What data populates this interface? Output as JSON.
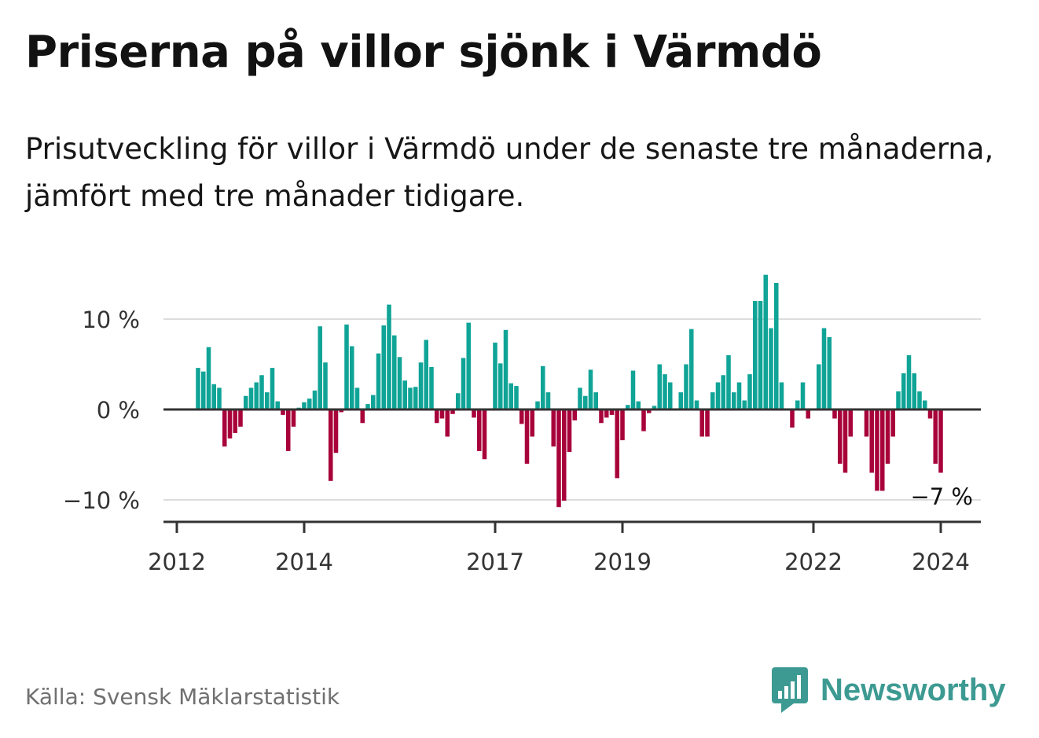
{
  "title": "Priserna på villor sjönk i Värmdö",
  "subtitle": "Prisutveckling för villor i Värmdö under de senaste tre månaderna, jämfört med tre månader tidigare.",
  "source": "Källa: Svensk Mäklarstatistik",
  "brand": {
    "name": "Newsworthy",
    "icon": "newsworthy-logo-icon",
    "color": "#3d9a92"
  },
  "colors": {
    "positive": "#10a497",
    "negative": "#a8023a",
    "grid": "#dddddd",
    "axis": "#333333"
  },
  "chart_data": {
    "type": "bar",
    "ylabel": "",
    "xlabel": "",
    "ylim": [
      -12.5,
      12.5
    ],
    "y_ticks": [
      {
        "value": 10,
        "label": "10 %"
      },
      {
        "value": 0,
        "label": "0 %"
      },
      {
        "value": -10,
        "label": "−10 %"
      }
    ],
    "x_ticks": [
      {
        "value": 2012,
        "label": "2012"
      },
      {
        "value": 2014,
        "label": "2014"
      },
      {
        "value": 2017,
        "label": "2017"
      },
      {
        "value": 2019,
        "label": "2019"
      },
      {
        "value": 2022,
        "label": "2022"
      },
      {
        "value": 2024,
        "label": "2024"
      }
    ],
    "x_start": {
      "year": 2012,
      "month": 1
    },
    "x_end": {
      "year": 2024,
      "month": 6
    },
    "series_start": {
      "year": 2012,
      "month": 5
    },
    "last_value_label": "−7 %",
    "values": [
      4.6,
      4.2,
      6.9,
      2.8,
      2.4,
      -4.1,
      -3.2,
      -2.6,
      -1.9,
      1.5,
      2.4,
      3.0,
      3.8,
      1.9,
      4.6,
      0.9,
      -0.6,
      -4.6,
      -1.9,
      0.2,
      0.8,
      1.2,
      2.1,
      9.2,
      5.2,
      -7.9,
      -4.8,
      -0.3,
      9.4,
      7.0,
      2.4,
      -1.5,
      0.6,
      1.6,
      6.2,
      9.3,
      11.6,
      8.2,
      5.8,
      3.2,
      2.4,
      2.5,
      5.2,
      7.7,
      4.7,
      -1.5,
      -1.0,
      -3.0,
      -0.5,
      1.8,
      5.7,
      9.6,
      -0.9,
      -4.6,
      -5.5,
      0.1,
      7.4,
      5.1,
      8.8,
      2.9,
      2.6,
      -1.6,
      -6.0,
      -3.0,
      0.9,
      4.8,
      1.9,
      -4.1,
      -10.8,
      -10.1,
      -4.7,
      -1.2,
      2.4,
      1.5,
      4.4,
      1.9,
      -1.5,
      -0.9,
      -0.6,
      -7.6,
      -3.4,
      0.5,
      4.3,
      0.9,
      -2.4,
      -0.4,
      0.4,
      5.0,
      3.9,
      3.0,
      -0.1,
      1.9,
      5.0,
      8.9,
      1.0,
      -3.0,
      -3.0,
      1.9,
      3.0,
      3.8,
      6.0,
      1.9,
      3.0,
      1.0,
      3.9,
      12.0,
      12.0,
      14.9,
      9.0,
      14.0,
      3.0,
      0.0,
      -2.0,
      1.0,
      3.0,
      -1.0,
      0.0,
      5.0,
      9.0,
      8.0,
      -1.0,
      -6.0,
      -7.0,
      -3.0,
      0.0,
      0.0,
      -3.0,
      -7.0,
      -9.0,
      -9.0,
      -6.0,
      -3.0,
      2.0,
      4.0,
      6.0,
      4.0,
      2.0,
      1.0,
      -1.0,
      -6.0,
      -7.0
    ]
  }
}
